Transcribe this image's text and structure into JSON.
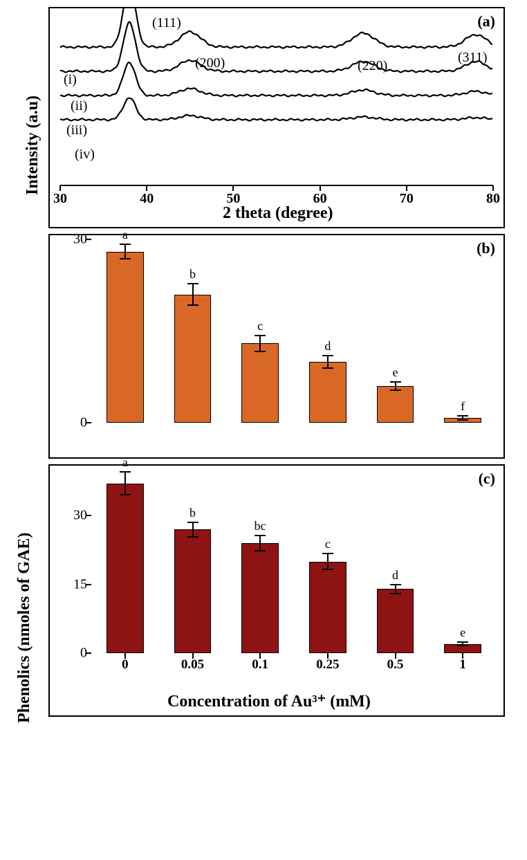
{
  "figure": {
    "background_color": "#ffffff",
    "border_color": "#000000",
    "y_axis_label": "Phenolics (nmoles of GAE)",
    "x_axis_label": "Concentration of Au³⁺ (mM)"
  },
  "panelA": {
    "label": "(a)",
    "type": "line",
    "x_axis_label_local": "2 theta (degree)",
    "y_axis_label_local": "Intensity (a.u)",
    "xlim": [
      30,
      80
    ],
    "xticks": [
      30,
      40,
      50,
      60,
      70,
      80
    ],
    "peak_labels": [
      {
        "text": "(111)",
        "two_theta": 38
      },
      {
        "text": "(200)",
        "two_theta": 45
      },
      {
        "text": "(220)",
        "two_theta": 65
      },
      {
        "text": "(311)",
        "two_theta": 78
      }
    ],
    "series_labels": [
      "(i)",
      "(ii)",
      "(iii)",
      "(iv)"
    ],
    "series_baselines": [
      200,
      165,
      130,
      95
    ],
    "peak_heights": {
      "i": {
        "111": 90,
        "200": 22,
        "220": 20,
        "311": 18
      },
      "ii": {
        "111": 70,
        "200": 16,
        "220": 14,
        "311": 14
      },
      "iii": {
        "111": 48,
        "200": 10,
        "220": 8,
        "311": 6
      },
      "iv": {
        "111": 32,
        "200": 6,
        "220": 4,
        "311": 3
      }
    },
    "line_color": "#000000",
    "line_width": 2.2,
    "axis_fontsize": 22,
    "tick_fontsize": 20
  },
  "panelB": {
    "label": "(b)",
    "type": "bar",
    "categories": [
      "0",
      "0.05",
      "0.1",
      "0.25",
      "0.5",
      "1"
    ],
    "values": [
      28,
      21,
      13,
      10,
      6,
      0.8
    ],
    "errors": [
      1.2,
      1.8,
      1.3,
      1.0,
      0.7,
      0.3
    ],
    "sig_letters": [
      "a",
      "b",
      "c",
      "d",
      "e",
      "f"
    ],
    "bar_color": "#d96827",
    "bar_border": "#000000",
    "ylim": [
      0,
      30
    ],
    "yticks": [
      0,
      30
    ],
    "bar_width": 0.55
  },
  "panelC": {
    "label": "(c)",
    "type": "bar",
    "categories": [
      "0",
      "0.05",
      "0.1",
      "0.25",
      "0.5",
      "1"
    ],
    "values": [
      37,
      27,
      24,
      20,
      14,
      2
    ],
    "errors": [
      2.5,
      1.6,
      1.6,
      1.8,
      1.0,
      0.4
    ],
    "sig_letters": [
      "a",
      "b",
      "bc",
      "c",
      "d",
      "e"
    ],
    "bar_color": "#8e1414",
    "bar_border": "#000000",
    "ylim": [
      0,
      40
    ],
    "yticks": [
      0,
      15,
      30
    ],
    "bar_width": 0.55
  }
}
